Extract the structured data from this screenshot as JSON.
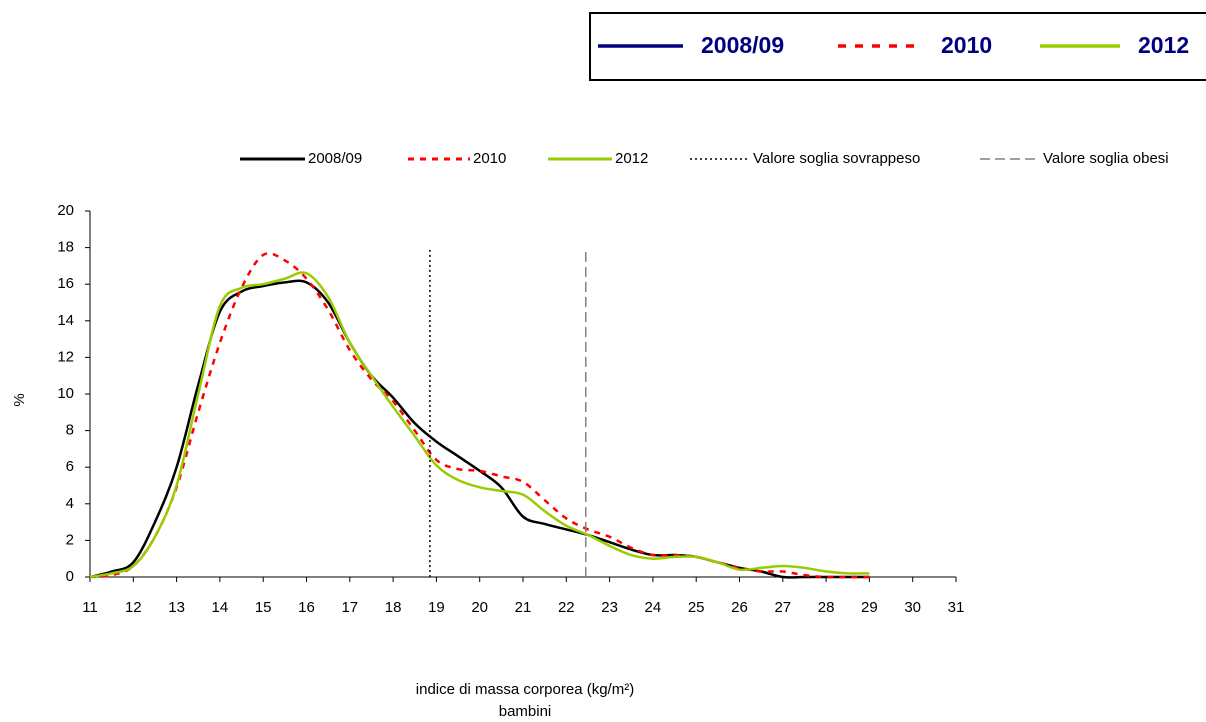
{
  "chart_data": {
    "type": "line",
    "legend_box": {
      "items": [
        {
          "name": "2008/09",
          "color": "#000080",
          "dash": "solid"
        },
        {
          "name": "2010",
          "color": "#ff0000",
          "dash": "dashed"
        },
        {
          "name": "2012",
          "color": "#99cc00",
          "dash": "solid"
        }
      ]
    },
    "xlabel": "indice di massa corporea (kg/m²)",
    "xlabel_sub": "bambini",
    "ylabel": "%",
    "xlim": [
      11,
      31
    ],
    "xticks": [
      11,
      12,
      13,
      14,
      15,
      16,
      17,
      18,
      19,
      20,
      21,
      22,
      23,
      24,
      25,
      26,
      27,
      28,
      29,
      30,
      31
    ],
    "ylim": [
      0,
      20
    ],
    "yticks": [
      0,
      2,
      4,
      6,
      8,
      10,
      12,
      14,
      16,
      18,
      20
    ],
    "x": [
      11,
      11.5,
      12,
      12.5,
      13,
      13.5,
      14,
      14.5,
      15,
      15.5,
      16,
      16.5,
      17,
      17.5,
      18,
      18.5,
      19,
      19.5,
      20,
      20.5,
      21,
      21.5,
      22,
      22.5,
      23,
      23.5,
      24,
      24.5,
      25,
      25.5,
      26,
      26.5,
      27,
      27.5,
      28,
      28.5,
      29
    ],
    "series": [
      {
        "name": "2008/09",
        "color": "#000000",
        "dash": "solid",
        "values": [
          0,
          0.3,
          0.8,
          3,
          6,
          10.5,
          14.5,
          15.6,
          15.9,
          16.1,
          16.1,
          15,
          12.8,
          11,
          9.8,
          8.4,
          7.4,
          6.6,
          5.8,
          4.9,
          3.3,
          2.9,
          2.6,
          2.3,
          1.9,
          1.5,
          1.2,
          1.2,
          1.1,
          0.8,
          0.5,
          0.3,
          0,
          0,
          0,
          0,
          0
        ]
      },
      {
        "name": "2010",
        "color": "#ff0000",
        "dash": "dashed",
        "values": [
          0,
          0.1,
          0.6,
          2.2,
          4.9,
          9,
          12.8,
          15.8,
          17.6,
          17.3,
          16.3,
          14.6,
          12.4,
          10.8,
          9.6,
          8,
          6.4,
          5.9,
          5.8,
          5.5,
          5.2,
          4.2,
          3.2,
          2.6,
          2.2,
          1.6,
          1.2,
          1.2,
          1.1,
          0.8,
          0.5,
          0.3,
          0.3,
          0.1,
          0,
          0,
          0
        ]
      },
      {
        "name": "2012",
        "color": "#99cc00",
        "dash": "solid",
        "values": [
          0,
          0.2,
          0.6,
          2.2,
          5,
          10,
          14.8,
          15.8,
          16,
          16.3,
          16.6,
          15.3,
          12.8,
          11,
          9.3,
          7.7,
          6.1,
          5.3,
          4.9,
          4.7,
          4.5,
          3.6,
          2.8,
          2.3,
          1.7,
          1.2,
          1,
          1.1,
          1.1,
          0.8,
          0.4,
          0.5,
          0.6,
          0.5,
          0.3,
          0.2,
          0.2
        ]
      },
      {
        "name": "Valore soglia sovrappeso",
        "color": "#000000",
        "dash": "dotted",
        "x": [
          18.85,
          18.85
        ],
        "values": [
          0,
          18
        ]
      },
      {
        "name": "Valore soglia obesi",
        "color": "#808080",
        "dash": "longdash",
        "x": [
          22.45,
          22.45
        ],
        "values": [
          0,
          18
        ]
      }
    ]
  }
}
